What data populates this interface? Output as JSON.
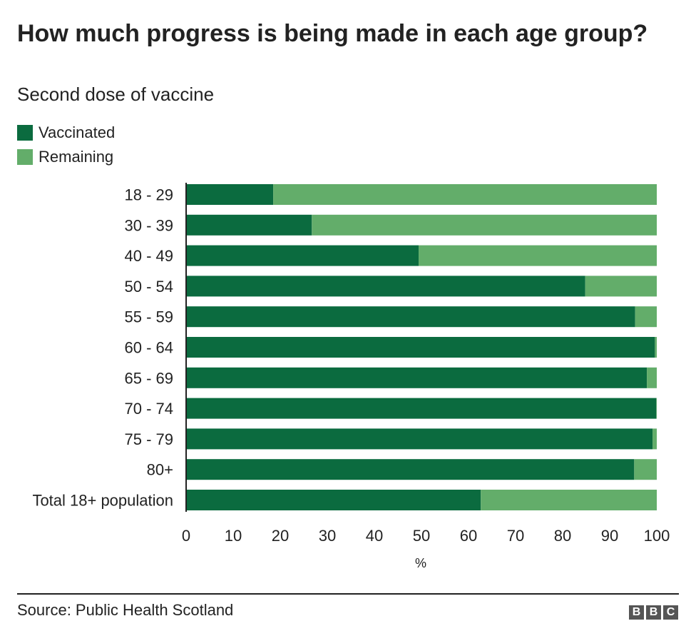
{
  "header": {
    "title": "How much progress is being made in each age group?",
    "subtitle": "Second dose of vaccine"
  },
  "legend": [
    {
      "label": "Vaccinated",
      "color": "#0b6b3f"
    },
    {
      "label": "Remaining",
      "color": "#63ad6a"
    }
  ],
  "footer": {
    "source": "Source: Public Health Scotland",
    "logo_letters": [
      "B",
      "B",
      "C"
    ]
  },
  "chart_data": {
    "type": "bar",
    "orientation": "horizontal",
    "stacked": true,
    "categories": [
      "18 - 29",
      "30 - 39",
      "40 - 49",
      "50 - 54",
      "55 - 59",
      "60 - 64",
      "65 - 69",
      "70 - 74",
      "75 - 79",
      "80+",
      "Total 18+ population"
    ],
    "series": [
      {
        "name": "Vaccinated",
        "color": "#0b6b3f",
        "values": [
          18.5,
          26.7,
          49.4,
          84.8,
          95.4,
          99.6,
          97.9,
          99.9,
          99.1,
          95.2,
          62.6
        ]
      },
      {
        "name": "Remaining",
        "color": "#63ad6a",
        "values": [
          81.5,
          73.3,
          50.6,
          15.2,
          4.6,
          0.4,
          2.1,
          0.1,
          0.9,
          4.8,
          37.4
        ]
      }
    ],
    "xlabel": "%",
    "ylabel": "",
    "xlim": [
      0,
      100
    ],
    "xticks": [
      "0",
      "10",
      "20",
      "30",
      "40",
      "50",
      "60",
      "70",
      "80",
      "90",
      "100"
    ],
    "grid": false,
    "legend_position": "top-left"
  }
}
